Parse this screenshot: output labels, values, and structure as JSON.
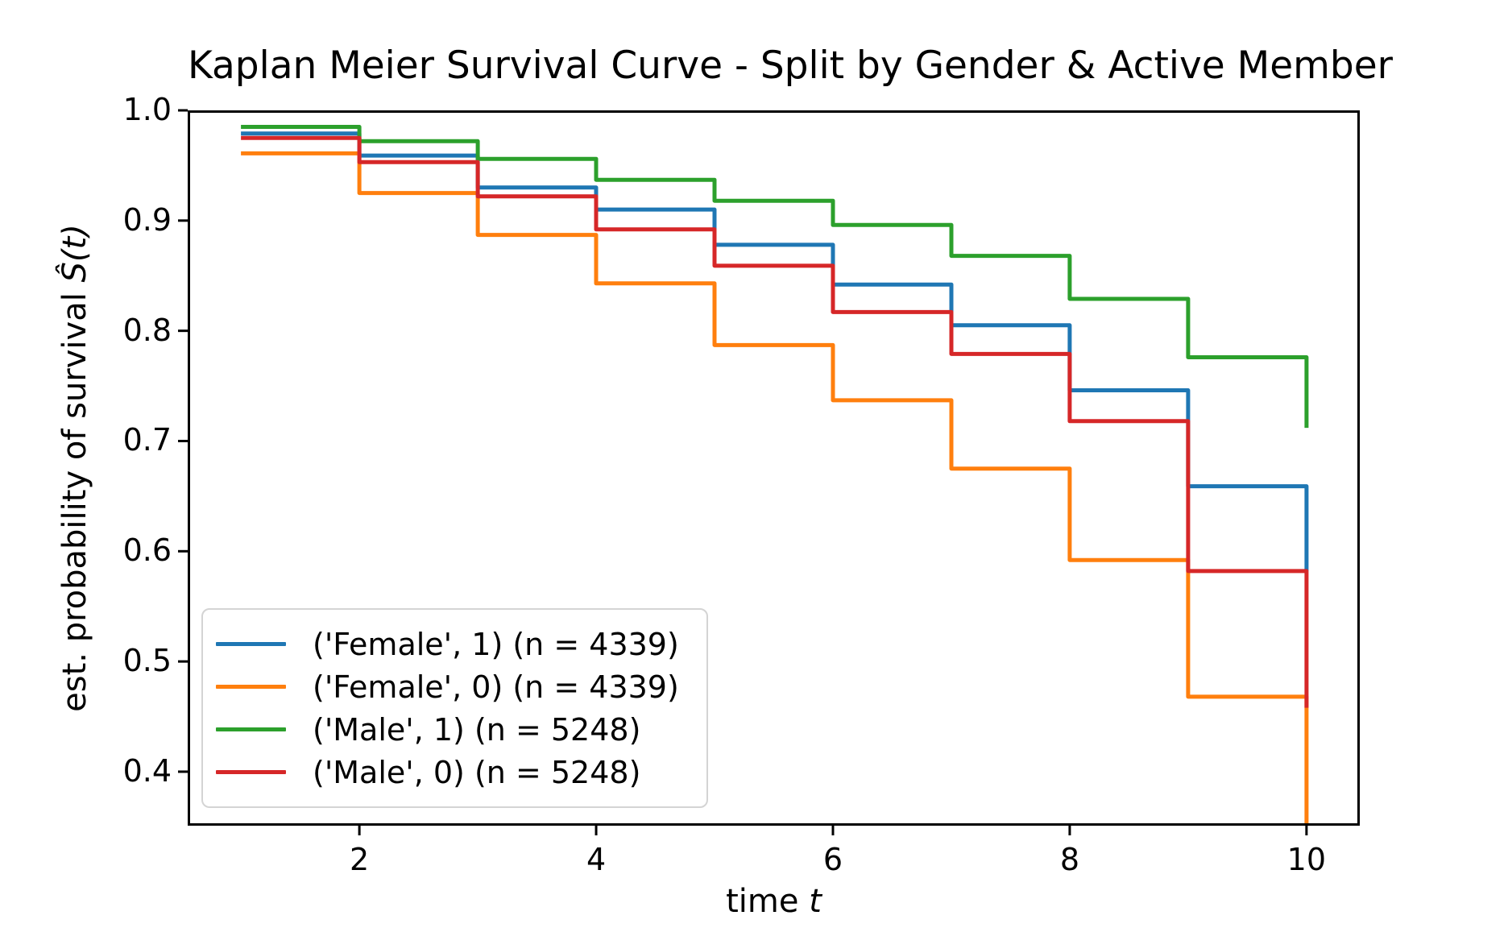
{
  "figure": {
    "title": "Kaplan Meier Survival Curve - Split by Gender & Active Member"
  },
  "axes": {
    "xlabel_prefix": "time ",
    "xlabel_math": "t",
    "ylabel_prefix": "est. probability of survival ",
    "ylabel_math": "Ŝ(t)",
    "xtick_labels": [
      "2",
      "4",
      "6",
      "8",
      "10"
    ],
    "ytick_labels": [
      "1.0",
      "0.9",
      "0.8",
      "0.7",
      "0.6",
      "0.5",
      "0.4"
    ]
  },
  "chart_data": {
    "type": "line",
    "step": "post",
    "title": "Kaplan Meier Survival Curve - Split by Gender & Active Member",
    "xlabel": "time t",
    "ylabel": "est. probability of survival Ŝ(t)",
    "x": [
      1,
      2,
      3,
      4,
      5,
      6,
      7,
      8,
      9,
      10
    ],
    "series": [
      {
        "name": "('Female', 1) (n = 4339)",
        "color": "#1f77b4",
        "values": [
          0.979,
          0.959,
          0.93,
          0.91,
          0.878,
          0.842,
          0.805,
          0.746,
          0.659,
          0.582
        ]
      },
      {
        "name": "('Female', 0) (n = 4339)",
        "color": "#ff7f0e",
        "values": [
          0.961,
          0.925,
          0.887,
          0.843,
          0.787,
          0.737,
          0.675,
          0.592,
          0.468,
          0.33
        ]
      },
      {
        "name": "('Male', 1) (n = 5248)",
        "color": "#2ca02c",
        "values": [
          0.985,
          0.972,
          0.956,
          0.937,
          0.918,
          0.896,
          0.868,
          0.829,
          0.776,
          0.712
        ]
      },
      {
        "name": "('Male', 0) (n = 5248)",
        "color": "#d62728",
        "values": [
          0.975,
          0.953,
          0.922,
          0.892,
          0.859,
          0.817,
          0.779,
          0.718,
          0.582,
          0.458
        ]
      }
    ],
    "xlim": [
      0.55,
      10.45
    ],
    "ylim": [
      0.351,
      1.0
    ],
    "xticks": [
      2,
      4,
      6,
      8,
      10
    ],
    "yticks": [
      1.0,
      0.9,
      0.8,
      0.7,
      0.6,
      0.5,
      0.4
    ],
    "grid": false,
    "legend_position": "lower left",
    "line_width": 5,
    "axis_color": "#000000",
    "background_color": "#ffffff"
  }
}
